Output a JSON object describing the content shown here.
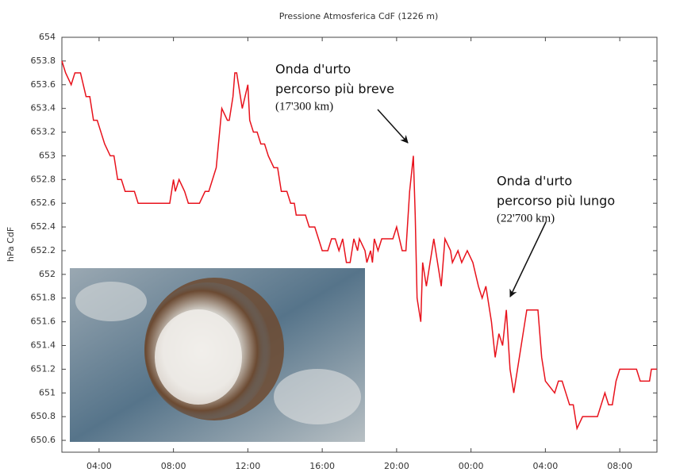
{
  "chart_data": {
    "type": "line",
    "title": "Pressione Atmosferica CdF (1226 m)",
    "y_label": "hPa CdF",
    "xlim": [
      2,
      34
    ],
    "xticks": [
      {
        "value": 4,
        "label": "04:00"
      },
      {
        "value": 8,
        "label": "08:00"
      },
      {
        "value": 12,
        "label": "12:00"
      },
      {
        "value": 16,
        "label": "16:00"
      },
      {
        "value": 20,
        "label": "20:00"
      },
      {
        "value": 24,
        "label": "00:00"
      },
      {
        "value": 28,
        "label": "04:00"
      },
      {
        "value": 32,
        "label": "08:00"
      }
    ],
    "ylim": [
      650.5,
      654
    ],
    "yticks": [
      650.6,
      650.8,
      651,
      651.2,
      651.4,
      651.6,
      651.8,
      652,
      652.2,
      652.4,
      652.6,
      652.8,
      653,
      653.2,
      653.4,
      653.6,
      653.8,
      654
    ],
    "grid": false,
    "series": [
      {
        "color": "#e8121c",
        "x": [
          2.0,
          2.2,
          2.5,
          2.7,
          3.0,
          3.3,
          3.5,
          3.7,
          3.9,
          4.1,
          4.3,
          4.6,
          4.8,
          5.0,
          5.2,
          5.4,
          5.9,
          6.1,
          7.8,
          8.0,
          8.1,
          8.3,
          8.6,
          8.8,
          9.4,
          9.7,
          9.9,
          10.3,
          10.6,
          10.9,
          11.0,
          11.2,
          11.3,
          11.4,
          11.7,
          12.0,
          12.1,
          12.3,
          12.5,
          12.7,
          12.9,
          13.1,
          13.4,
          13.6,
          13.8,
          14.1,
          14.3,
          14.5,
          14.6,
          15.1,
          15.3,
          15.6,
          15.8,
          16.0,
          16.3,
          16.5,
          16.7,
          16.9,
          17.1,
          17.3,
          17.5,
          17.7,
          17.9,
          18.0,
          18.3,
          18.4,
          18.6,
          18.7,
          18.8,
          19.0,
          19.2,
          19.8,
          20.0,
          20.3,
          20.5,
          20.7,
          20.9,
          21.0,
          21.1,
          21.3,
          21.4,
          21.6,
          21.8,
          22.0,
          22.2,
          22.4,
          22.6,
          22.9,
          23.0,
          23.3,
          23.5,
          23.8,
          24.1,
          24.4,
          24.6,
          24.8,
          25.0,
          25.1,
          25.3,
          25.5,
          25.7,
          25.9,
          26.1,
          26.3,
          26.6,
          26.8,
          27.0,
          27.6,
          27.8,
          28.0,
          28.5,
          28.7,
          28.9,
          29.1,
          29.3,
          29.5,
          29.7,
          30.0,
          30.2,
          30.8,
          31.0,
          31.2,
          31.4,
          31.6,
          31.8,
          32.0,
          32.2,
          32.9,
          33.1,
          33.6,
          33.7,
          34.0
        ],
        "values": [
          653.8,
          653.7,
          653.6,
          653.7,
          653.7,
          653.5,
          653.5,
          653.3,
          653.3,
          653.2,
          653.1,
          653.0,
          653.0,
          652.8,
          652.8,
          652.7,
          652.7,
          652.6,
          652.6,
          652.8,
          652.7,
          652.8,
          652.7,
          652.6,
          652.6,
          652.7,
          652.7,
          652.9,
          653.4,
          653.3,
          653.3,
          653.5,
          653.7,
          653.7,
          653.4,
          653.6,
          653.3,
          653.2,
          653.2,
          653.1,
          653.1,
          653.0,
          652.9,
          652.9,
          652.7,
          652.7,
          652.6,
          652.6,
          652.5,
          652.5,
          652.4,
          652.4,
          652.3,
          652.2,
          652.2,
          652.3,
          652.3,
          652.2,
          652.3,
          652.1,
          652.1,
          652.3,
          652.2,
          652.3,
          652.2,
          652.1,
          652.2,
          652.1,
          652.3,
          652.2,
          652.3,
          652.3,
          652.4,
          652.2,
          652.2,
          652.7,
          653.0,
          652.5,
          651.8,
          651.6,
          652.1,
          651.9,
          652.1,
          652.3,
          652.1,
          651.9,
          652.3,
          652.2,
          652.1,
          652.2,
          652.1,
          652.2,
          652.1,
          651.9,
          651.8,
          651.9,
          651.7,
          651.6,
          651.3,
          651.5,
          651.4,
          651.7,
          651.2,
          651.0,
          651.3,
          651.5,
          651.7,
          651.7,
          651.3,
          651.1,
          651.0,
          651.1,
          651.1,
          651.0,
          650.9,
          650.9,
          650.7,
          650.8,
          650.8,
          650.8,
          650.9,
          651.0,
          650.9,
          650.9,
          651.1,
          651.2,
          651.2,
          651.2,
          651.1,
          651.1,
          651.2,
          651.2
        ]
      }
    ],
    "annotations": [
      {
        "lines": [
          "Onda d'urto",
          "percorso più breve",
          "(17'300 km)"
        ]
      },
      {
        "lines": [
          "Onda d'urto",
          "percorso più lungo",
          "(22'700 km)"
        ]
      }
    ]
  }
}
